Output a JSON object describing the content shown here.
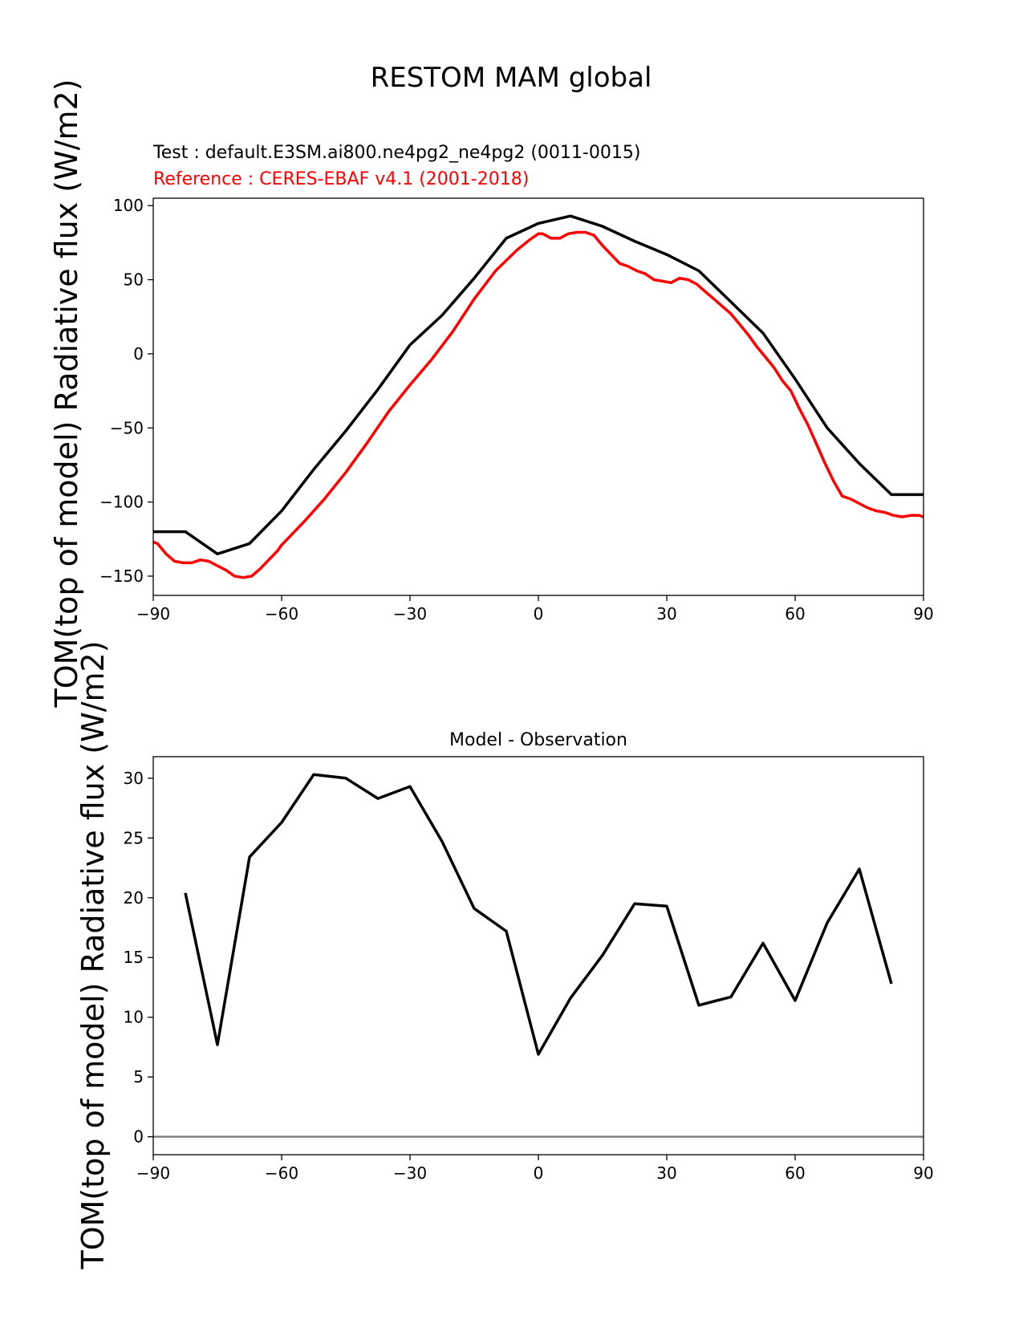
{
  "figure": {
    "title": "RESTOM MAM global"
  },
  "colors": {
    "test": "#000000",
    "reference": "#ff0000",
    "zero_line": "#808080"
  },
  "chart_data": [
    {
      "type": "line",
      "test_label": "Test : default.E3SM.ai800.ne4pg2_ne4pg2 (0011-0015)",
      "reference_label": "Reference : CERES-EBAF v4.1 (2001-2018)",
      "ylabel": "TOM(top of model) Radiative flux (W/m2)",
      "xlim": [
        -90,
        90
      ],
      "ylim": [
        -163,
        105
      ],
      "xticks": [
        -90,
        -60,
        -30,
        0,
        30,
        60,
        90
      ],
      "yticks": [
        -150,
        -100,
        -50,
        0,
        50,
        100
      ],
      "series": [
        {
          "role": "test",
          "x": [
            -90,
            -82.5,
            -75,
            -67.5,
            -60,
            -52.5,
            -45,
            -37.5,
            -30,
            -22.5,
            -15,
            -7.5,
            0,
            7.5,
            15,
            22.5,
            30,
            37.5,
            45,
            52.5,
            60,
            67.5,
            75,
            82.5,
            90
          ],
          "y": [
            -120,
            -120,
            -135,
            -128,
            -106,
            -78,
            -52,
            -24,
            6,
            26,
            51,
            78,
            88,
            93,
            86,
            76,
            67,
            56,
            35,
            14,
            -17,
            -50,
            -74,
            -95,
            -95
          ]
        },
        {
          "role": "reference",
          "x": [
            -90,
            -89,
            -87,
            -85,
            -83,
            -81,
            -79,
            -77,
            -75,
            -73,
            -71,
            -69,
            -67,
            -65,
            -63,
            -61,
            -60,
            -55,
            -50,
            -45,
            -40,
            -35,
            -30,
            -25,
            -20,
            -15,
            -10,
            -5,
            -2,
            0,
            1,
            3,
            5,
            7,
            9,
            11,
            13,
            15,
            17,
            19,
            21,
            23,
            25,
            27,
            29,
            31,
            33,
            35,
            37,
            39,
            41,
            43,
            45,
            47,
            49,
            51,
            53,
            55,
            57,
            59,
            61,
            63,
            65,
            67,
            69,
            71,
            73,
            75,
            77,
            79,
            81,
            83,
            85,
            87,
            89,
            90
          ],
          "y": [
            -127,
            -128,
            -135,
            -140,
            -141,
            -141,
            -139,
            -140,
            -143,
            -146,
            -150,
            -151,
            -150,
            -145,
            -139,
            -133,
            -129,
            -114,
            -98,
            -80,
            -60,
            -39,
            -21,
            -4,
            15,
            37,
            56,
            70,
            77,
            81,
            81,
            78,
            78,
            81,
            82,
            82,
            80,
            73,
            67,
            61,
            59,
            56,
            54,
            50,
            49,
            48,
            51,
            50,
            47,
            42,
            37,
            32,
            27,
            20,
            13,
            5,
            -2,
            -9,
            -18,
            -25,
            -37,
            -48,
            -61,
            -74,
            -86,
            -96,
            -98,
            -101,
            -104,
            -106,
            -107,
            -109,
            -110,
            -109,
            -109,
            -110
          ]
        }
      ]
    },
    {
      "type": "line",
      "title": "Model - Observation",
      "ylabel": "TOM(top of model) Radiative flux (W/m2)",
      "xlim": [
        -90,
        90
      ],
      "ylim": [
        -1.5,
        31.8
      ],
      "xticks": [
        -90,
        -60,
        -30,
        0,
        30,
        60,
        90
      ],
      "yticks": [
        0,
        5,
        10,
        15,
        20,
        25,
        30
      ],
      "zero_line": 0,
      "series": [
        {
          "role": "difference",
          "x": [
            -82.5,
            -75,
            -67.5,
            -60,
            -52.5,
            -45,
            -37.5,
            -30,
            -22.5,
            -15,
            -7.5,
            0,
            7.5,
            15,
            22.5,
            30,
            37.5,
            45,
            52.5,
            60,
            67.5,
            75,
            82.5
          ],
          "y": [
            20.4,
            7.7,
            23.4,
            26.3,
            30.3,
            30.0,
            28.3,
            29.3,
            24.7,
            19.1,
            17.2,
            6.9,
            11.6,
            15.2,
            19.5,
            19.3,
            11.0,
            11.7,
            16.2,
            11.4,
            17.9,
            22.4,
            12.8
          ]
        }
      ]
    }
  ]
}
